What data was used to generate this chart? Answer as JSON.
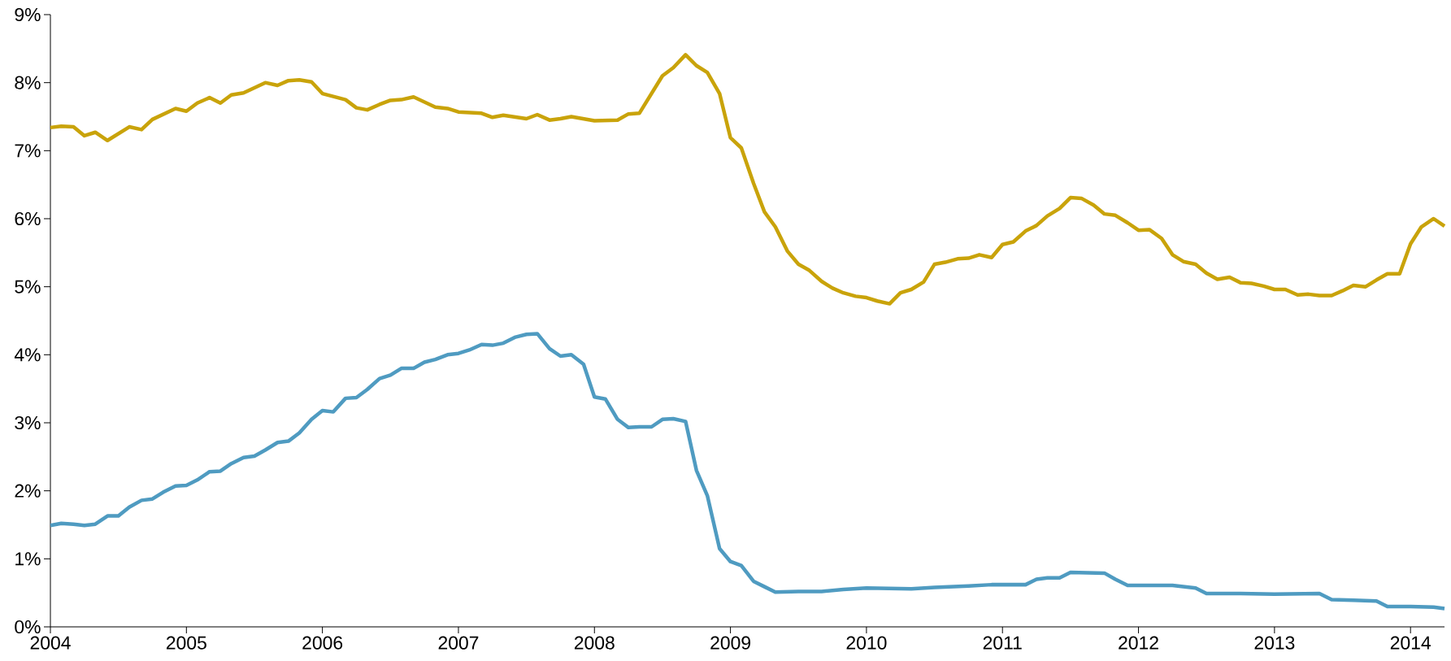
{
  "chart_data": {
    "type": "line",
    "xlim": [
      2004,
      2014.25
    ],
    "ylim": [
      0,
      9
    ],
    "xticks": [
      2004,
      2005,
      2006,
      2007,
      2008,
      2009,
      2010,
      2011,
      2012,
      2013,
      2014
    ],
    "yticks": [
      {
        "value": 0,
        "label": "0%"
      },
      {
        "value": 1,
        "label": "1%"
      },
      {
        "value": 2,
        "label": "2%"
      },
      {
        "value": 3,
        "label": "3%"
      },
      {
        "value": 4,
        "label": "4%"
      },
      {
        "value": 5,
        "label": "5%"
      },
      {
        "value": 6,
        "label": "6%"
      },
      {
        "value": 7,
        "label": "7%"
      },
      {
        "value": 8,
        "label": "8%"
      },
      {
        "value": 9,
        "label": "9%"
      }
    ],
    "marker": "none",
    "line_style": "solid",
    "series": [
      {
        "color": "#c9a30a",
        "x": [
          2004.0,
          2004.08,
          2004.17,
          2004.25,
          2004.33,
          2004.42,
          2004.58,
          2004.67,
          2004.75,
          2004.92,
          2005.0,
          2005.08,
          2005.17,
          2005.25,
          2005.33,
          2005.42,
          2005.58,
          2005.67,
          2005.75,
          2005.83,
          2005.92,
          2006.0,
          2006.17,
          2006.25,
          2006.33,
          2006.42,
          2006.5,
          2006.58,
          2006.67,
          2006.83,
          2006.92,
          2007.0,
          2007.17,
          2007.25,
          2007.33,
          2007.5,
          2007.58,
          2007.67,
          2007.75,
          2007.83,
          2008.0,
          2008.17,
          2008.25,
          2008.33,
          2008.5,
          2008.58,
          2008.67,
          2008.75,
          2008.83,
          2008.92,
          2009.0,
          2009.08,
          2009.17,
          2009.25,
          2009.33,
          2009.42,
          2009.5,
          2009.58,
          2009.67,
          2009.75,
          2009.83,
          2009.92,
          2010.0,
          2010.08,
          2010.17,
          2010.25,
          2010.33,
          2010.42,
          2010.5,
          2010.58,
          2010.67,
          2010.75,
          2010.83,
          2010.92,
          2011.0,
          2011.08,
          2011.17,
          2011.25,
          2011.33,
          2011.42,
          2011.5,
          2011.58,
          2011.67,
          2011.75,
          2011.83,
          2011.92,
          2012.0,
          2012.08,
          2012.17,
          2012.25,
          2012.33,
          2012.42,
          2012.5,
          2012.58,
          2012.67,
          2012.75,
          2012.83,
          2012.92,
          2013.0,
          2013.08,
          2013.17,
          2013.25,
          2013.33,
          2013.42,
          2013.5,
          2013.58,
          2013.67,
          2013.75,
          2013.83,
          2013.92,
          2014.0,
          2014.08,
          2014.17,
          2014.25
        ],
        "values": [
          7.34,
          7.36,
          7.35,
          7.22,
          7.27,
          7.15,
          7.35,
          7.31,
          7.46,
          7.62,
          7.58,
          7.7,
          7.78,
          7.7,
          7.82,
          7.85,
          8.0,
          7.96,
          8.03,
          8.04,
          8.01,
          7.84,
          7.75,
          7.63,
          7.6,
          7.68,
          7.74,
          7.75,
          7.79,
          7.64,
          7.62,
          7.57,
          7.55,
          7.49,
          7.52,
          7.47,
          7.53,
          7.45,
          7.47,
          7.5,
          7.44,
          7.45,
          7.54,
          7.55,
          8.1,
          8.22,
          8.41,
          8.25,
          8.15,
          7.84,
          7.19,
          7.04,
          6.52,
          6.1,
          5.88,
          5.52,
          5.33,
          5.24,
          5.08,
          4.98,
          4.91,
          4.86,
          4.84,
          4.79,
          4.75,
          4.91,
          4.96,
          5.07,
          5.33,
          5.36,
          5.41,
          5.42,
          5.47,
          5.43,
          5.62,
          5.66,
          5.82,
          5.9,
          6.04,
          6.15,
          6.31,
          6.3,
          6.2,
          6.07,
          6.05,
          5.94,
          5.83,
          5.84,
          5.71,
          5.47,
          5.37,
          5.33,
          5.2,
          5.11,
          5.14,
          5.06,
          5.05,
          5.01,
          4.96,
          4.96,
          4.88,
          4.89,
          4.87,
          4.87,
          4.94,
          5.02,
          5.0,
          5.1,
          5.19,
          5.19,
          5.63,
          5.88,
          6.0,
          5.89
        ]
      },
      {
        "color": "#4f9bc1",
        "x": [
          2004.0,
          2004.08,
          2004.17,
          2004.25,
          2004.33,
          2004.42,
          2004.5,
          2004.58,
          2004.67,
          2004.75,
          2004.83,
          2004.92,
          2005.0,
          2005.08,
          2005.17,
          2005.25,
          2005.33,
          2005.42,
          2005.5,
          2005.58,
          2005.67,
          2005.75,
          2005.83,
          2005.92,
          2006.0,
          2006.08,
          2006.17,
          2006.25,
          2006.33,
          2006.42,
          2006.5,
          2006.58,
          2006.67,
          2006.75,
          2006.83,
          2006.92,
          2007.0,
          2007.08,
          2007.17,
          2007.25,
          2007.33,
          2007.42,
          2007.5,
          2007.58,
          2007.67,
          2007.75,
          2007.83,
          2007.92,
          2008.0,
          2008.08,
          2008.17,
          2008.25,
          2008.33,
          2008.42,
          2008.5,
          2008.58,
          2008.67,
          2008.75,
          2008.83,
          2008.92,
          2009.0,
          2009.08,
          2009.17,
          2009.25,
          2009.33,
          2009.5,
          2009.67,
          2009.83,
          2010.0,
          2010.33,
          2010.5,
          2010.75,
          2010.92,
          2011.17,
          2011.25,
          2011.33,
          2011.42,
          2011.5,
          2011.75,
          2011.83,
          2011.92,
          2012.17,
          2012.25,
          2012.42,
          2012.5,
          2012.75,
          2013.0,
          2013.33,
          2013.42,
          2013.58,
          2013.75,
          2013.83,
          2014.0,
          2014.17,
          2014.25
        ],
        "values": [
          1.49,
          1.52,
          1.51,
          1.49,
          1.51,
          1.63,
          1.63,
          1.76,
          1.86,
          1.88,
          1.98,
          2.07,
          2.08,
          2.16,
          2.28,
          2.29,
          2.4,
          2.49,
          2.51,
          2.6,
          2.71,
          2.73,
          2.85,
          3.05,
          3.18,
          3.16,
          3.36,
          3.37,
          3.49,
          3.65,
          3.7,
          3.8,
          3.8,
          3.89,
          3.93,
          4.0,
          4.02,
          4.07,
          4.15,
          4.14,
          4.17,
          4.26,
          4.3,
          4.31,
          4.09,
          3.98,
          4.0,
          3.86,
          3.38,
          3.35,
          3.05,
          2.93,
          2.94,
          2.94,
          3.05,
          3.06,
          3.02,
          2.3,
          1.93,
          1.15,
          0.96,
          0.9,
          0.67,
          0.59,
          0.51,
          0.52,
          0.52,
          0.55,
          0.57,
          0.56,
          0.58,
          0.6,
          0.62,
          0.62,
          0.7,
          0.72,
          0.72,
          0.8,
          0.79,
          0.7,
          0.61,
          0.61,
          0.61,
          0.57,
          0.49,
          0.49,
          0.48,
          0.49,
          0.4,
          0.39,
          0.38,
          0.3,
          0.3,
          0.29,
          0.27
        ]
      }
    ]
  }
}
